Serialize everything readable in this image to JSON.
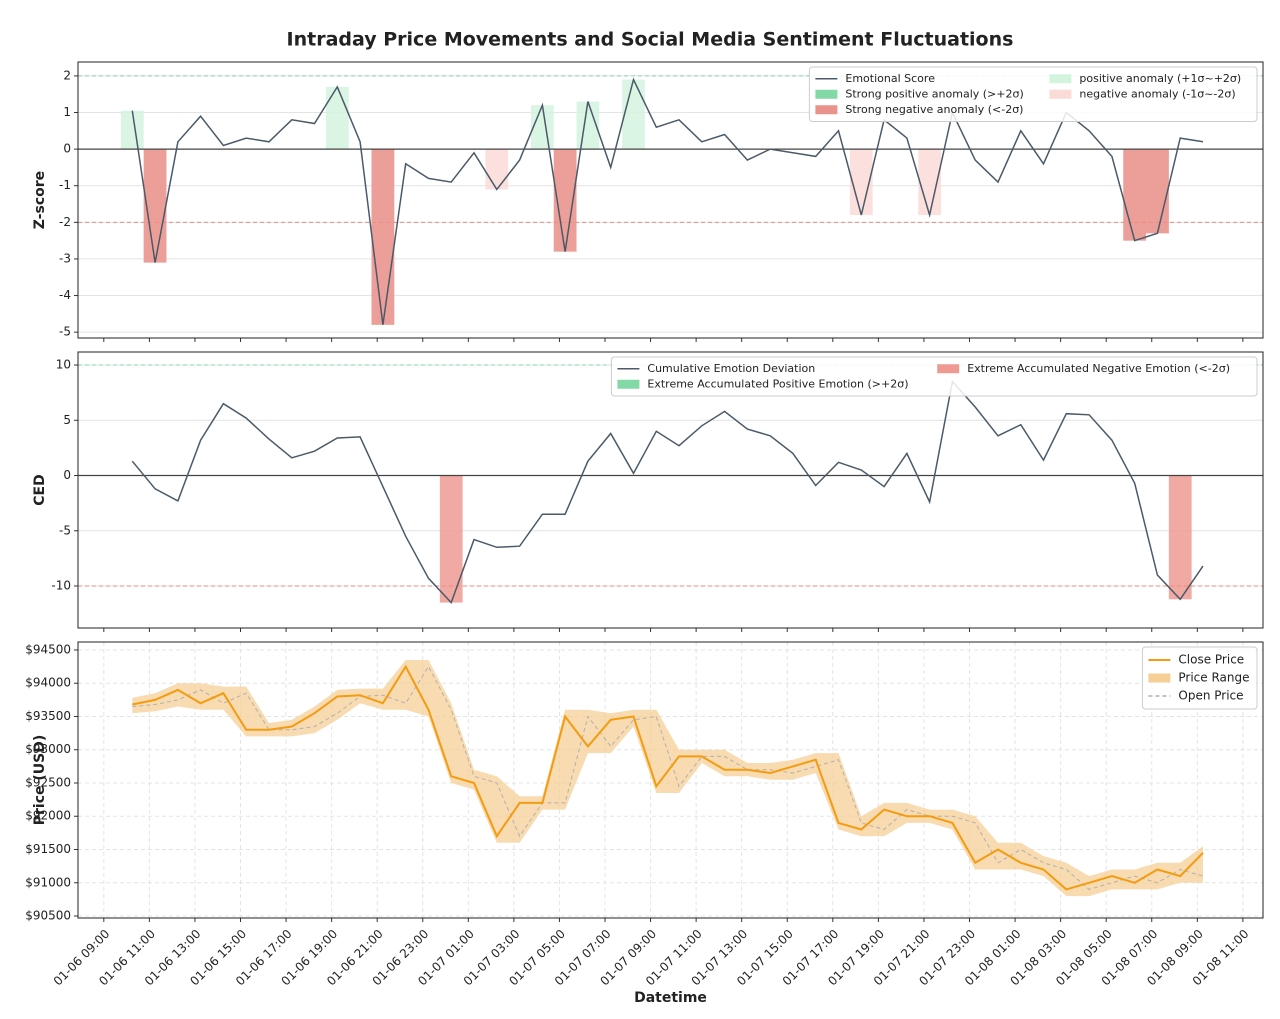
{
  "chart_data": [
    {
      "type": "line",
      "title": "Intraday Price Movements and Social Media Sentiment Fluctuations",
      "ylabel": "Z-score",
      "ylim": [
        -5.16,
        2.38
      ],
      "yticks": [
        -5,
        -4,
        -3,
        -2,
        -1,
        0,
        1,
        2
      ],
      "grid": true,
      "legend": "upper right",
      "legend_columns": 2,
      "series": [
        {
          "name": "Emotional Score",
          "color": "#4b5a69",
          "values": [
            1.05,
            -3.1,
            0.2,
            0.9,
            0.1,
            0.3,
            0.2,
            0.8,
            0.7,
            1.7,
            0.2,
            -4.8,
            -0.4,
            -0.8,
            -0.9,
            -0.1,
            -1.1,
            -0.3,
            1.2,
            -2.8,
            1.3,
            -0.5,
            1.9,
            0.6,
            0.8,
            0.2,
            0.4,
            -0.3,
            0,
            -0.1,
            -0.2,
            0.5,
            -1.8,
            0.8,
            0.3,
            -1.8,
            1.0,
            -0.3,
            -0.9,
            0.5,
            -0.4,
            1.0,
            0.5,
            -0.2,
            -2.5,
            -2.3,
            0.3,
            0.2
          ]
        }
      ],
      "anomalies": [
        {
          "name": "Strong positive anomaly (>+2σ)",
          "color": "#82d9a6",
          "threshold": 2
        },
        {
          "name": "Strong negative anomaly (<-2σ)",
          "color": "#e9938c",
          "threshold": -2
        },
        {
          "name": "positive anomaly (+1σ~+2σ)",
          "color": "#d3f3df",
          "threshold": 1
        },
        {
          "name": "negative anomaly (-1σ~-2σ)",
          "color": "#fadbd8",
          "threshold": -1
        }
      ],
      "hlines": [
        {
          "value": 2,
          "color": "#82d9a6",
          "dash": true
        },
        {
          "value": -2,
          "color": "#f08a80",
          "dash": true
        },
        {
          "value": 0,
          "color": "#444",
          "dash": false
        }
      ]
    },
    {
      "type": "line",
      "ylabel": "CED",
      "ylim": [
        -13.8,
        11.18
      ],
      "yticks": [
        -10,
        -5,
        0,
        5,
        10
      ],
      "grid": true,
      "legend": "upper right",
      "legend_columns": 2,
      "series": [
        {
          "name": "Cumulative Emotion Deviation",
          "color": "#4b5a69",
          "values": [
            1.3,
            -1.2,
            -2.3,
            3.2,
            6.5,
            5.2,
            3.3,
            1.6,
            2.2,
            3.4,
            3.5,
            -1.0,
            -5.5,
            -9.3,
            -11.5,
            -5.8,
            -6.5,
            -6.4,
            -3.5,
            -3.5,
            1.3,
            3.8,
            0.2,
            4.0,
            2.7,
            4.5,
            5.8,
            4.2,
            3.6,
            2.0,
            -0.9,
            1.2,
            0.5,
            -1.0,
            2.0,
            -2.4,
            8.5,
            6.2,
            3.6,
            4.6,
            1.4,
            5.6,
            5.5,
            3.2,
            -0.7,
            -9.0,
            -11.2,
            -8.2
          ]
        }
      ],
      "anomalies": [
        {
          "name": "Extreme Accumulated Positive Emotion (>+2σ)",
          "color": "#82d9a6",
          "threshold": 10
        },
        {
          "name": "Extreme Accumulated Negative Emotion (<-2σ)",
          "color": "#ee9a93",
          "threshold": -10
        }
      ],
      "hlines": [
        {
          "value": 10,
          "color": "#82d9a6",
          "dash": true
        },
        {
          "value": -10,
          "color": "#f08a80",
          "dash": true
        },
        {
          "value": 0,
          "color": "#444",
          "dash": false
        }
      ]
    },
    {
      "type": "price",
      "ylabel": "Price (USD)",
      "xlabel": "Datetime",
      "ylim": [
        90470,
        94620
      ],
      "yticks": [
        {
          "value": 90500,
          "label": "$90500"
        },
        {
          "value": 91000,
          "label": "$91000"
        },
        {
          "value": 91500,
          "label": "$91500"
        },
        {
          "value": 92000,
          "label": "$92000"
        },
        {
          "value": 92500,
          "label": "$92500"
        },
        {
          "value": 93000,
          "label": "$93000"
        },
        {
          "value": 93500,
          "label": "$93500"
        },
        {
          "value": 94000,
          "label": "$94000"
        },
        {
          "value": 94500,
          "label": "$94500"
        }
      ],
      "grid": true,
      "legend": "upper right",
      "legend_columns": 1,
      "xlim": [
        "01-06 07:52",
        "01-08 11:53"
      ],
      "xticks": [
        "01-06 09:00",
        "01-06 11:00",
        "01-06 13:00",
        "01-06 15:00",
        "01-06 17:00",
        "01-06 19:00",
        "01-06 21:00",
        "01-06 23:00",
        "01-07 01:00",
        "01-07 03:00",
        "01-07 05:00",
        "01-07 07:00",
        "01-07 09:00",
        "01-07 11:00",
        "01-07 13:00",
        "01-07 15:00",
        "01-07 17:00",
        "01-07 19:00",
        "01-07 21:00",
        "01-07 23:00",
        "01-08 01:00",
        "01-08 03:00",
        "01-08 05:00",
        "01-08 07:00",
        "01-08 09:00",
        "01-08 11:00"
      ],
      "x": [
        "01-06 10:15",
        "01-06 11:15",
        "01-06 12:15",
        "01-06 13:15",
        "01-06 14:15",
        "01-06 15:15",
        "01-06 16:15",
        "01-06 17:15",
        "01-06 18:15",
        "01-06 19:15",
        "01-06 20:15",
        "01-06 21:15",
        "01-06 22:15",
        "01-06 23:15",
        "01-07 00:15",
        "01-07 01:15",
        "01-07 02:15",
        "01-07 03:15",
        "01-07 04:15",
        "01-07 05:15",
        "01-07 06:15",
        "01-07 07:15",
        "01-07 08:15",
        "01-07 09:15",
        "01-07 10:15",
        "01-07 11:15",
        "01-07 12:15",
        "01-07 13:15",
        "01-07 14:15",
        "01-07 15:15",
        "01-07 16:15",
        "01-07 17:15",
        "01-07 18:15",
        "01-07 19:15",
        "01-07 20:15",
        "01-07 21:15",
        "01-07 22:15",
        "01-07 23:15",
        "01-08 00:15",
        "01-08 01:15",
        "01-08 02:15",
        "01-08 03:15",
        "01-08 04:15",
        "01-08 05:15",
        "01-08 06:15",
        "01-08 07:15",
        "01-08 08:15",
        "01-08 09:15"
      ],
      "series": [
        {
          "name": "Close Price",
          "color": "#f39c12",
          "values": [
            93680,
            93750,
            93900,
            93700,
            93850,
            93300,
            93300,
            93350,
            93550,
            93800,
            93820,
            93700,
            94250,
            93600,
            92600,
            92500,
            91700,
            92200,
            92200,
            93500,
            93050,
            93450,
            93500,
            92450,
            92900,
            92900,
            92700,
            92700,
            92650,
            92750,
            92850,
            91900,
            91800,
            92100,
            92000,
            92000,
            91900,
            91300,
            91500,
            91300,
            91200,
            90900,
            91000,
            91100,
            91000,
            91200,
            91100,
            91450
          ]
        },
        {
          "name": "Price Range",
          "color": "#f5cf95",
          "high": [
            93780,
            93850,
            94000,
            94000,
            93950,
            93950,
            93400,
            93450,
            93650,
            93900,
            93920,
            93920,
            94350,
            94350,
            93700,
            92700,
            92600,
            92300,
            92300,
            93600,
            93600,
            93550,
            93600,
            93600,
            93000,
            93000,
            93000,
            92800,
            92800,
            92850,
            92950,
            92950,
            92000,
            92200,
            92200,
            92100,
            92100,
            92000,
            91600,
            91600,
            91400,
            91300,
            91100,
            91200,
            91200,
            91300,
            91300,
            91550
          ],
          "low": [
            93550,
            93580,
            93650,
            93600,
            93600,
            93200,
            93200,
            93200,
            93250,
            93450,
            93700,
            93600,
            93600,
            93500,
            92500,
            92400,
            91600,
            91600,
            92100,
            92100,
            92950,
            92950,
            93350,
            92350,
            92350,
            92800,
            92600,
            92600,
            92550,
            92550,
            92650,
            91800,
            91700,
            91700,
            91900,
            91900,
            91800,
            91200,
            91200,
            91200,
            91100,
            90800,
            90800,
            90900,
            90900,
            90900,
            91000,
            91000
          ]
        },
        {
          "name": "Open Price",
          "color": "#b0b0b0",
          "values": [
            93650,
            93680,
            93750,
            93900,
            93700,
            93850,
            93300,
            93300,
            93350,
            93550,
            93800,
            93820,
            93700,
            94250,
            93600,
            92600,
            92500,
            91700,
            92200,
            92200,
            93500,
            93050,
            93450,
            93500,
            92450,
            92900,
            92900,
            92700,
            92700,
            92650,
            92750,
            92850,
            91900,
            91800,
            92100,
            92000,
            92000,
            91900,
            91300,
            91500,
            91300,
            91200,
            90900,
            91000,
            91100,
            91000,
            91200,
            91100
          ]
        }
      ]
    }
  ]
}
